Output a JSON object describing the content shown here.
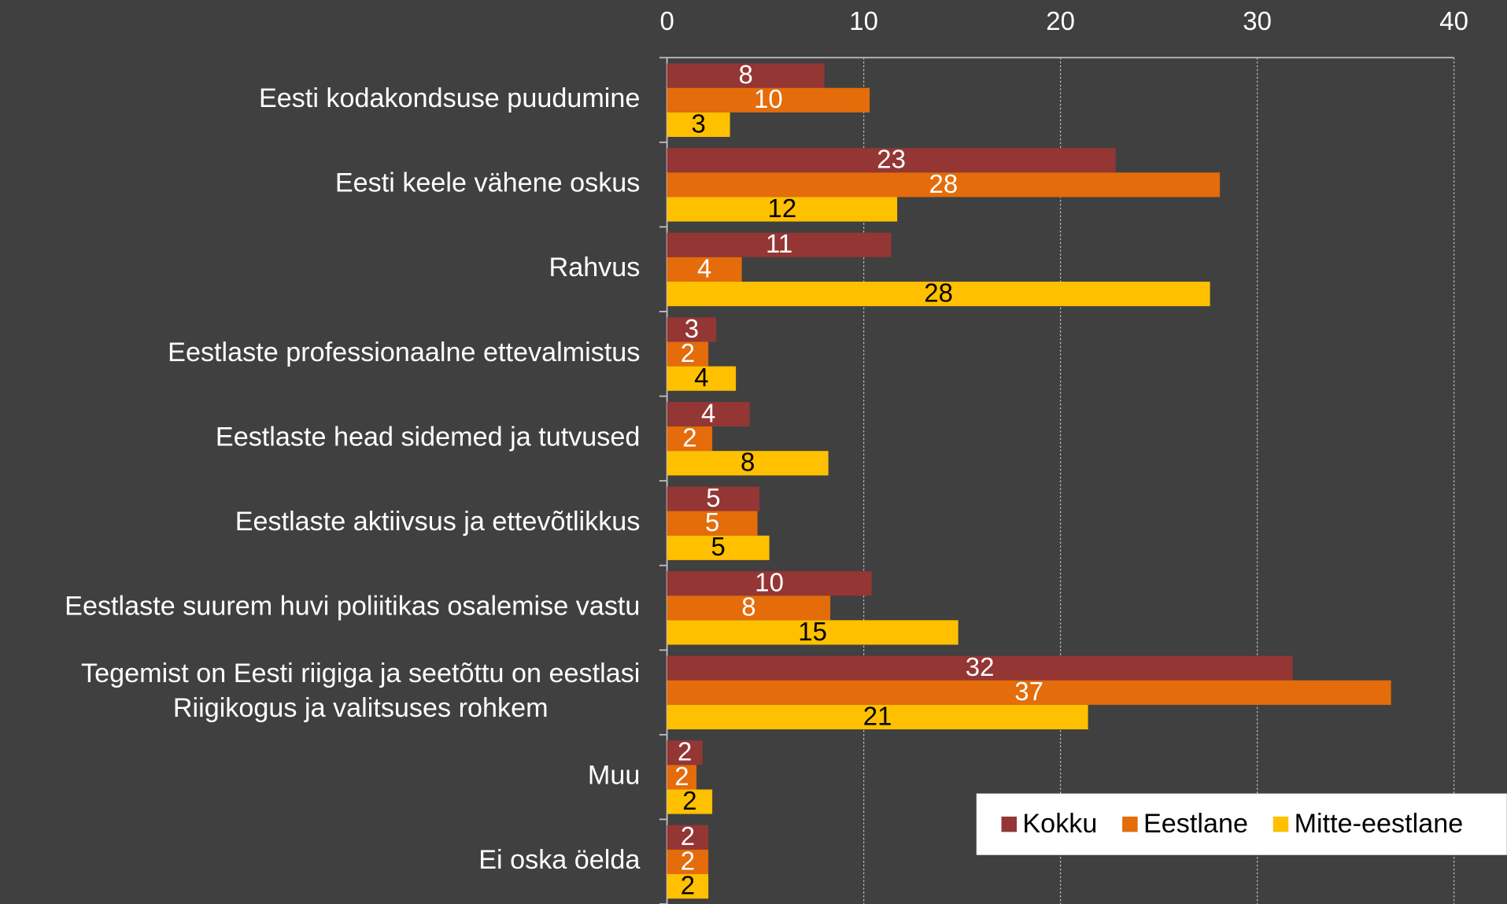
{
  "chart_data": {
    "type": "hbar",
    "categories": [
      "Eesti kodakondsuse puudumine",
      "Eesti keele vähene oskus",
      "Rahvus",
      "Eestlaste professionaalne ettevalmistus",
      "Eestlaste head sidemed ja tutvused",
      "Eestlaste aktiivsus ja ettevõtlikkus",
      "Eestlaste suurem huvi poliitikas osalemise vastu ",
      "Tegemist on Eesti riigiga ja seetõttu on eestlasi\nRiigikogus ja valitsuses rohkem",
      "Muu",
      "Ei oska öelda"
    ],
    "series": [
      {
        "name": "Kokku",
        "color": "#943634",
        "label_color": "#ffffff",
        "values": [
          8.0,
          22.8,
          11.4,
          2.5,
          4.2,
          4.7,
          10.4,
          31.8,
          1.8,
          2.1
        ],
        "value_labels": [
          "8",
          "23",
          "11",
          "3",
          "4",
          "5",
          "10",
          "32",
          "2",
          "2"
        ]
      },
      {
        "name": "Eestlane",
        "color": "#e46c0a",
        "label_color": "#ffffff",
        "values": [
          10.3,
          28.1,
          3.8,
          2.1,
          2.3,
          4.6,
          8.3,
          36.8,
          1.5,
          2.1
        ],
        "value_labels": [
          "10",
          "28",
          "4",
          "2",
          "2",
          "5",
          "8",
          "37",
          "2",
          "2"
        ]
      },
      {
        "name": "Mitte-eestlane",
        "color": "#ffc000",
        "label_color": "#000000",
        "values": [
          3.2,
          11.7,
          27.6,
          3.5,
          8.2,
          5.2,
          14.8,
          21.4,
          2.3,
          2.1
        ],
        "value_labels": [
          "3",
          "12",
          "28",
          "4",
          "8",
          "5",
          "15",
          "21",
          "2",
          "2"
        ]
      }
    ],
    "xlim": [
      0,
      40
    ],
    "xticks": [
      0,
      10,
      20,
      30,
      40
    ],
    "grid": true,
    "legend": "lower right"
  }
}
